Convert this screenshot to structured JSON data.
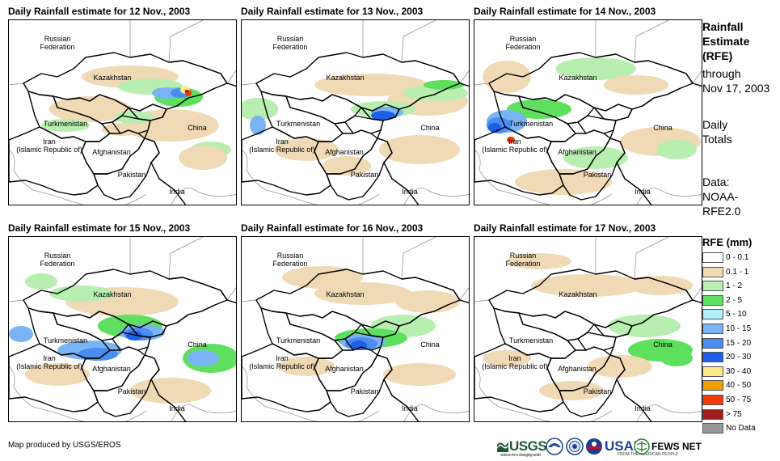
{
  "panels": [
    {
      "title": "Daily Rainfall estimate for 12 Nov., 2003"
    },
    {
      "title": "Daily Rainfall estimate for 13 Nov., 2003"
    },
    {
      "title": "Daily Rainfall estimate for 14 Nov., 2003"
    },
    {
      "title": "Daily Rainfall estimate for 15 Nov., 2003"
    },
    {
      "title": "Daily Rainfall estimate for 16 Nov., 2003"
    },
    {
      "title": "Daily Rainfall estimate for 17 Nov., 2003"
    }
  ],
  "map_labels": {
    "russia": "Russian\nFederation",
    "kazakhstan": "Kazakhstan",
    "turkmenistan": "Turkmenistan",
    "iran": "Iran\n(Islamic Republic of)",
    "afghanistan": "Afghanistan",
    "pakistan": "Pakistan",
    "china": "China",
    "india": "India"
  },
  "side": {
    "heading": "Rainfall\nEstimate\n(RFE)",
    "through": "through\nNov 17, 2003",
    "totals": "Daily\nTotals",
    "data": "Data:\nNOAA-\nRFE2.0"
  },
  "legend": {
    "title": "RFE (mm)",
    "items": [
      {
        "label": "0 - 0.1",
        "color": "#ffffff"
      },
      {
        "label": "0.1 - 1",
        "color": "#f0d9b5"
      },
      {
        "label": "1 - 2",
        "color": "#b8eeb0"
      },
      {
        "label": "2 - 5",
        "color": "#5ee05e"
      },
      {
        "label": "5 - 10",
        "color": "#b0f0f8"
      },
      {
        "label": "10 - 15",
        "color": "#7ab4f4"
      },
      {
        "label": "15 - 20",
        "color": "#4a8cf0"
      },
      {
        "label": "20 - 30",
        "color": "#1f5fe8"
      },
      {
        "label": "30 - 40",
        "color": "#fde98a"
      },
      {
        "label": "40 - 50",
        "color": "#f5a000"
      },
      {
        "label": "50 - 75",
        "color": "#f03c0a"
      },
      {
        "label": "> 75",
        "color": "#a01e1e"
      },
      {
        "label": "No Data",
        "color": "#999999"
      }
    ]
  },
  "credit": "Map produced by USGS/EROS",
  "logos": {
    "usgs": "USGS",
    "usgs_sub": "science for a changing world",
    "usaid": "USAID",
    "usaid_sub": "FROM THE AMERICAN PEOPLE",
    "fews": "FEWS NET"
  }
}
